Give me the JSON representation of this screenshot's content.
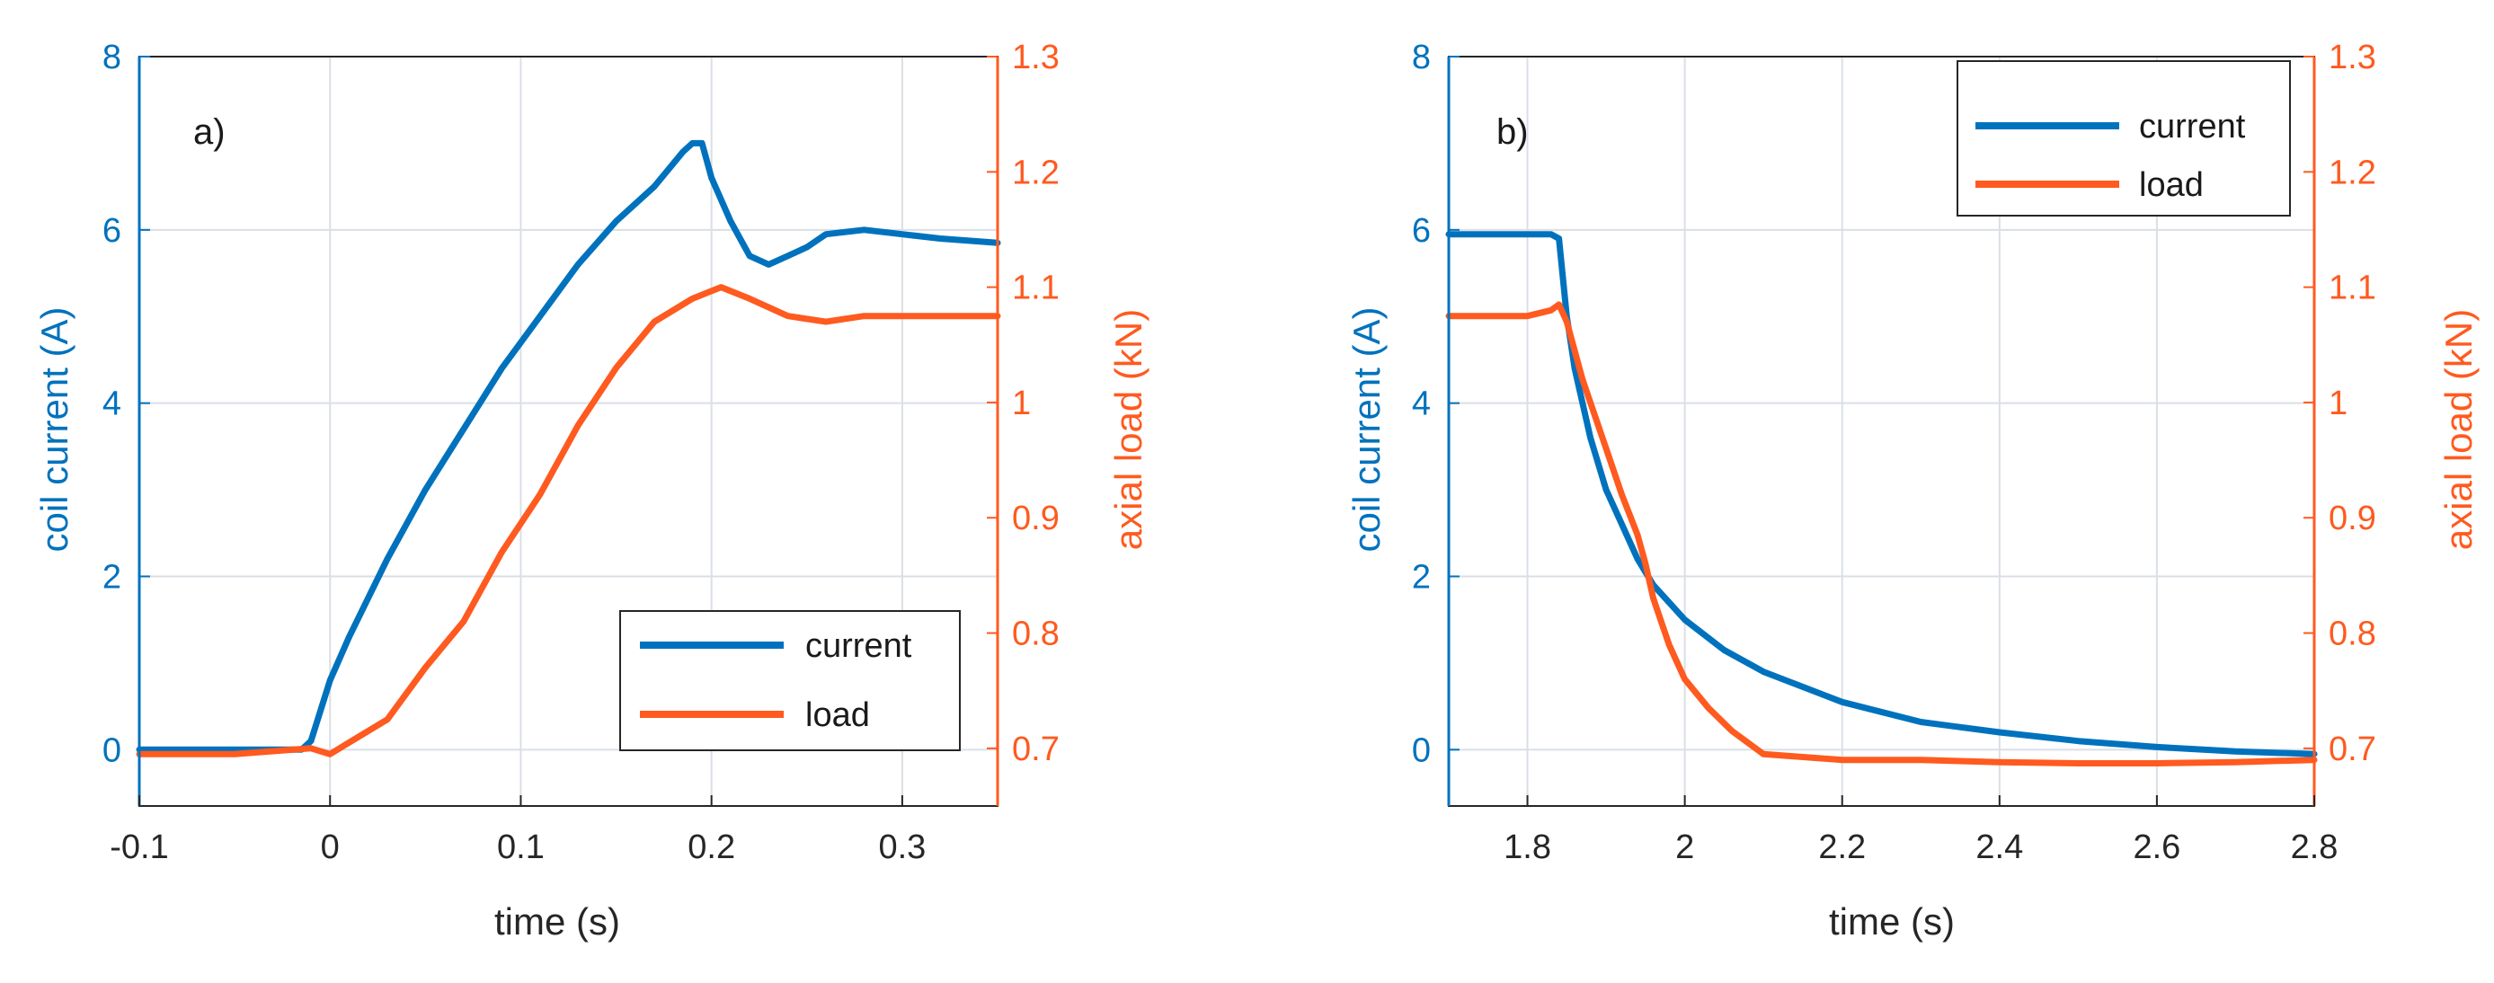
{
  "colors": {
    "current": "#0072BD",
    "load": "#FF5A1F",
    "axis": "#262626",
    "grid": "#DADFE6",
    "left_axis": "#0072BD",
    "right_axis": "#FF5A1F"
  },
  "chart_data": [
    {
      "type": "line",
      "panel_label": "a)",
      "xlabel": "time (s)",
      "ylabel_left": "coil current (A)",
      "ylabel_right": "axial load (kN)",
      "xlim": [
        -0.1,
        0.35
      ],
      "ylim_left": [
        -0.65,
        8
      ],
      "ylim_right": [
        0.65,
        1.3
      ],
      "xticks": [
        -0.1,
        0,
        0.1,
        0.2,
        0.3
      ],
      "xtick_labels": [
        "-0.1",
        "0",
        "0.1",
        "0.2",
        "0.3"
      ],
      "yticks_left": [
        0,
        2,
        4,
        6,
        8
      ],
      "ytick_labels_left": [
        "0",
        "2",
        "4",
        "6",
        "8"
      ],
      "yticks_right": [
        0.7,
        0.8,
        0.9,
        1.0,
        1.1,
        1.2,
        1.3
      ],
      "ytick_labels_right": [
        "0.7",
        "0.8",
        "0.9",
        "1",
        "1.1",
        "1.2",
        "1.3"
      ],
      "grid": true,
      "legend": {
        "location": "bottom-right",
        "entries": [
          "current",
          "load"
        ]
      },
      "series": [
        {
          "name": "current",
          "axis": "left",
          "x": [
            -0.1,
            -0.05,
            -0.015,
            -0.01,
            0,
            0.01,
            0.03,
            0.05,
            0.07,
            0.09,
            0.11,
            0.13,
            0.15,
            0.17,
            0.185,
            0.19,
            0.195,
            0.2,
            0.21,
            0.22,
            0.23,
            0.24,
            0.25,
            0.26,
            0.28,
            0.3,
            0.32,
            0.35
          ],
          "y": [
            0,
            0,
            0,
            0.1,
            0.8,
            1.3,
            2.2,
            3.0,
            3.7,
            4.4,
            5.0,
            5.6,
            6.1,
            6.5,
            6.9,
            7.0,
            7.0,
            6.6,
            6.1,
            5.7,
            5.6,
            5.7,
            5.8,
            5.95,
            6.0,
            5.95,
            5.9,
            5.85
          ]
        },
        {
          "name": "load",
          "axis": "right",
          "x": [
            -0.1,
            -0.05,
            -0.01,
            0,
            0.01,
            0.03,
            0.05,
            0.07,
            0.09,
            0.11,
            0.13,
            0.15,
            0.17,
            0.19,
            0.205,
            0.22,
            0.24,
            0.26,
            0.28,
            0.3,
            0.32,
            0.35
          ],
          "y": [
            0.695,
            0.695,
            0.7,
            0.695,
            0.705,
            0.725,
            0.77,
            0.81,
            0.87,
            0.92,
            0.98,
            1.03,
            1.07,
            1.09,
            1.1,
            1.09,
            1.075,
            1.07,
            1.075,
            1.075,
            1.075,
            1.075
          ]
        }
      ]
    },
    {
      "type": "line",
      "panel_label": "b)",
      "xlabel": "time (s)",
      "ylabel_left": "coil current (A)",
      "ylabel_right": "axial load (kN)",
      "xlim": [
        1.7,
        2.8
      ],
      "ylim_left": [
        -0.65,
        8
      ],
      "ylim_right": [
        0.65,
        1.3
      ],
      "xticks": [
        1.8,
        2.0,
        2.2,
        2.4,
        2.6,
        2.8
      ],
      "xtick_labels": [
        "1.8",
        "2",
        "2.2",
        "2.4",
        "2.6",
        "2.8"
      ],
      "yticks_left": [
        0,
        2,
        4,
        6,
        8
      ],
      "ytick_labels_left": [
        "0",
        "2",
        "4",
        "6",
        "8"
      ],
      "yticks_right": [
        0.7,
        0.8,
        0.9,
        1.0,
        1.1,
        1.2,
        1.3
      ],
      "ytick_labels_right": [
        "0.7",
        "0.8",
        "0.9",
        "1",
        "1.1",
        "1.2",
        "1.3"
      ],
      "grid": true,
      "legend": {
        "location": "top-right",
        "entries": [
          "current",
          "load"
        ]
      },
      "series": [
        {
          "name": "current",
          "axis": "left",
          "x": [
            1.7,
            1.75,
            1.8,
            1.83,
            1.84,
            1.85,
            1.86,
            1.88,
            1.9,
            1.92,
            1.94,
            1.96,
            1.98,
            2.0,
            2.05,
            2.1,
            2.2,
            2.3,
            2.4,
            2.5,
            2.6,
            2.7,
            2.8
          ],
          "y": [
            5.95,
            5.95,
            5.95,
            5.95,
            5.9,
            5.0,
            4.4,
            3.6,
            3.0,
            2.6,
            2.2,
            1.9,
            1.7,
            1.5,
            1.15,
            0.9,
            0.55,
            0.32,
            0.2,
            0.1,
            0.03,
            -0.02,
            -0.05
          ]
        },
        {
          "name": "load",
          "axis": "right",
          "x": [
            1.7,
            1.75,
            1.8,
            1.83,
            1.84,
            1.85,
            1.87,
            1.9,
            1.92,
            1.94,
            1.95,
            1.96,
            1.98,
            2.0,
            2.03,
            2.06,
            2.1,
            2.2,
            2.3,
            2.4,
            2.5,
            2.6,
            2.7,
            2.8
          ],
          "y": [
            1.075,
            1.075,
            1.075,
            1.08,
            1.085,
            1.07,
            1.02,
            0.96,
            0.92,
            0.885,
            0.86,
            0.83,
            0.79,
            0.76,
            0.735,
            0.715,
            0.695,
            0.69,
            0.69,
            0.688,
            0.687,
            0.687,
            0.688,
            0.69
          ]
        }
      ]
    }
  ]
}
